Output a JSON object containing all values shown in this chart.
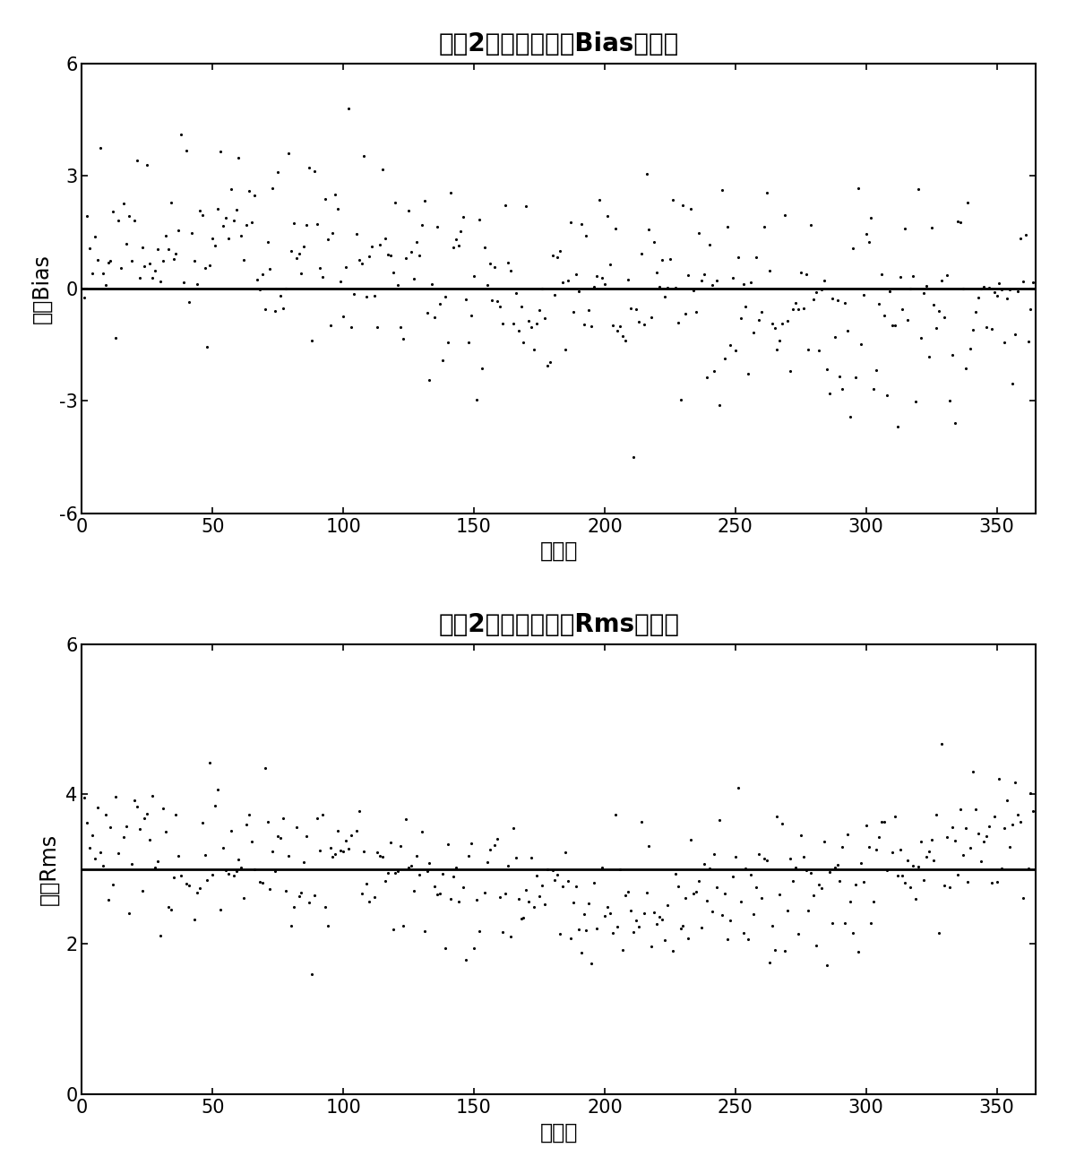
{
  "title1": "模型2中国区域日均Bias变化图",
  "title2": "模型2中国区域日均Rms变化图",
  "xlabel": "年积日",
  "ylabel1": "日均Bias",
  "ylabel2": "日均Rms",
  "xlim": [
    0,
    365
  ],
  "xticks": [
    0,
    50,
    100,
    150,
    200,
    250,
    300,
    350
  ],
  "ylim1": [
    -6,
    6
  ],
  "yticks1": [
    -6,
    -3,
    0,
    3,
    6
  ],
  "ylim2": [
    0,
    6
  ],
  "yticks2": [
    0,
    2,
    4,
    6
  ],
  "bias_hline": 0,
  "rms_hline": 3.0,
  "dot_color": "#000000",
  "dot_size": 20,
  "line_color": "#000000",
  "line_width": 2.0,
  "title_fontsize": 20,
  "label_fontsize": 17,
  "tick_fontsize": 15,
  "background_color": "#ffffff"
}
